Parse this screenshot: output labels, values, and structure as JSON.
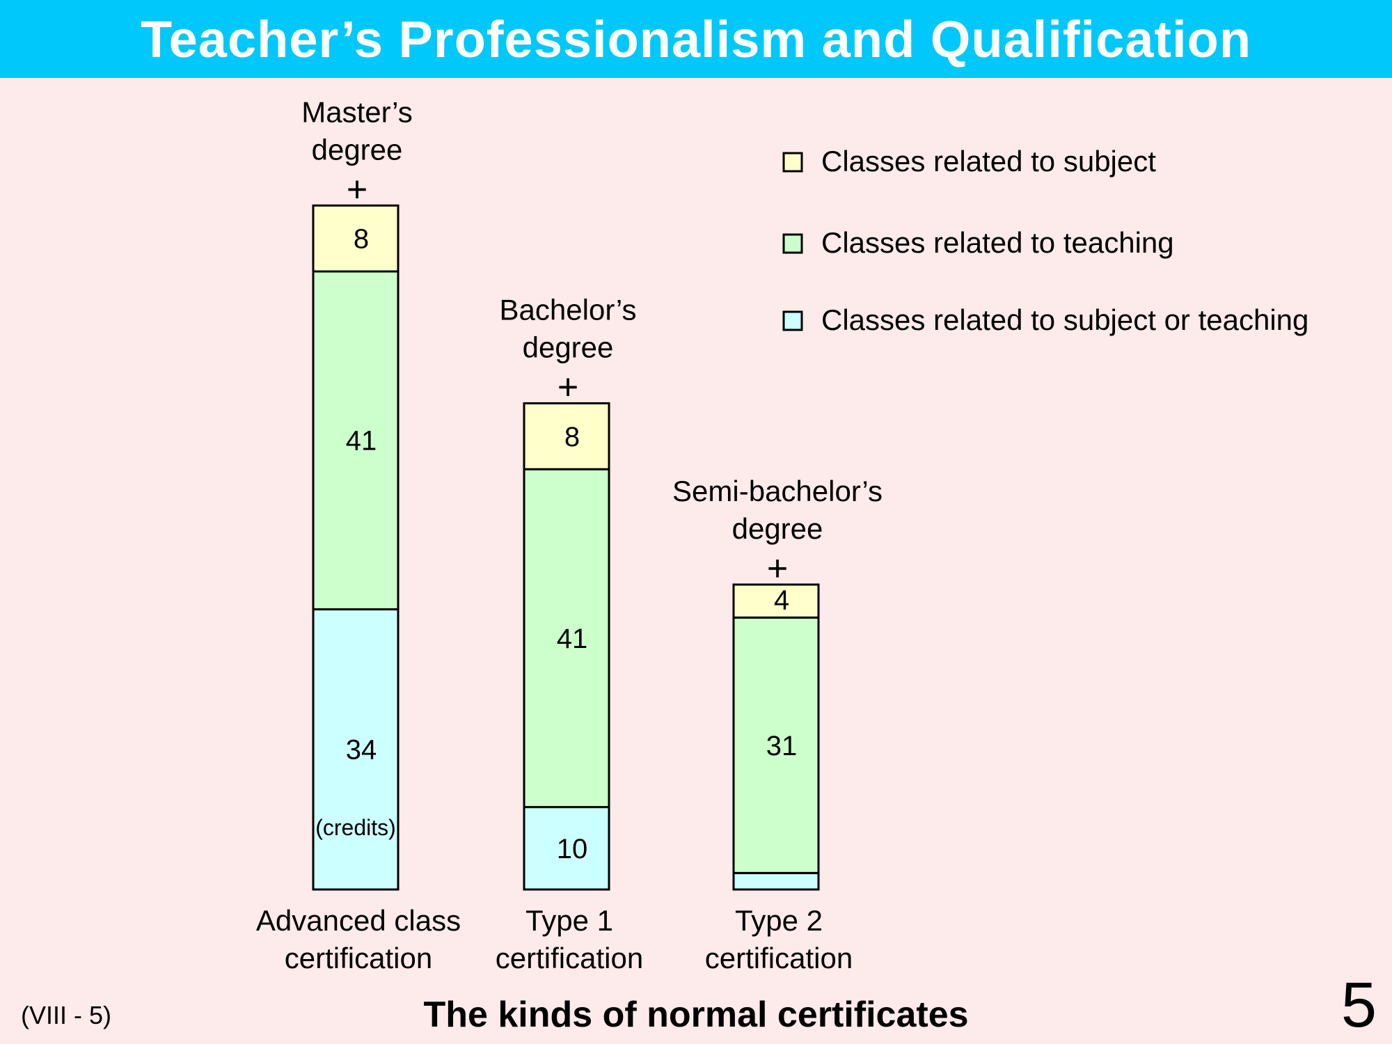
{
  "page": {
    "title": "Teacher’s Professionalism and Qualification",
    "subtitle": "The kinds of normal certificates",
    "code": "(VIII - 5)",
    "page_number": "5"
  },
  "colors": {
    "header_bg": "#00c8fa",
    "background": "#fdeaea",
    "subject": "#ffffcc",
    "teaching": "#ccffcc",
    "either": "#ccffff"
  },
  "chart_data": {
    "type": "bar",
    "stacked": true,
    "title": "",
    "unit_label": "(credits)",
    "categories": [
      [
        "Advanced class",
        "certification"
      ],
      [
        "Type 1",
        "certification"
      ],
      [
        "Type 2",
        "certification"
      ]
    ],
    "top_labels": [
      [
        "Master’s",
        "degree",
        "+"
      ],
      [
        "Bachelor’s",
        "degree",
        "+"
      ],
      [
        "Semi-bachelor’s",
        "degree",
        "+"
      ]
    ],
    "series": [
      {
        "name": "Classes related to subject or teaching",
        "color": "#ccffff",
        "values": [
          34,
          10,
          2
        ]
      },
      {
        "name": "Classes related to teaching",
        "color": "#ccffcc",
        "values": [
          41,
          41,
          31
        ]
      },
      {
        "name": "Classes related to subject",
        "color": "#ffffcc",
        "values": [
          8,
          8,
          4
        ]
      }
    ],
    "legend": {
      "placement": "top-right",
      "order": [
        "Classes related to subject",
        "Classes related to teaching",
        "Classes related to subject or teaching"
      ]
    },
    "axes": {
      "visible": false,
      "grid": false
    }
  }
}
